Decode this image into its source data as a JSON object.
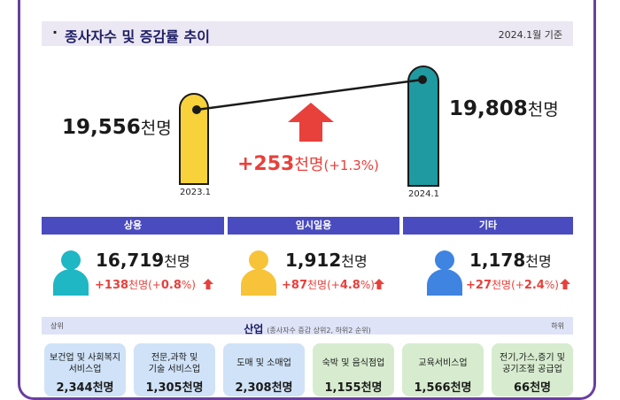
{
  "title": "종사자수 및 증감률 추이",
  "basis": "2024.1월 기준",
  "colors": {
    "accent_red": "#e8403b",
    "header_blue": "#4a4bbf",
    "frame_purple": "#6a3fa0"
  },
  "total": {
    "prev": {
      "year": "2023.1",
      "value": "19,556",
      "unit": "천명"
    },
    "curr": {
      "year": "2024.1",
      "value": "19,808",
      "unit": "천명"
    },
    "change": {
      "value": "+253",
      "unit": "천명",
      "pct": "(+1.3%)"
    }
  },
  "categories": [
    {
      "label": "상용",
      "value": "16,719",
      "unit": "천명",
      "change": "+138",
      "change_unit": "천명",
      "pct_open": "(+",
      "pct": "0.8",
      "pct_close": "%)",
      "icon": "person-teal-icon"
    },
    {
      "label": "임시일용",
      "value": "1,912",
      "unit": "천명",
      "change": "+87",
      "change_unit": "천명",
      "pct_open": "(+",
      "pct": "4.8",
      "pct_close": "%)",
      "icon": "person-yellow-icon"
    },
    {
      "label": "기타",
      "value": "1,178",
      "unit": "천명",
      "change": "+27",
      "change_unit": "천명",
      "pct_open": "(+",
      "pct": "2.4",
      "pct_close": "%)",
      "icon": "person-blue-icon"
    }
  ],
  "industry": {
    "title": "산업",
    "subtitle": "(종사자수 증감 상위2, 하위2 순위)",
    "left_label": "상위",
    "right_label": "하위",
    "cards": [
      {
        "name1": "보건업 및 사회복지",
        "name2": "서비스업",
        "value": "2,344천명"
      },
      {
        "name1": "전문,과학 및",
        "name2": "기술 서비스업",
        "value": "1,305천명"
      },
      {
        "name1": "도매 및 소매업",
        "name2": "",
        "value": "2,308천명"
      },
      {
        "name1": "숙박 및 음식점업",
        "name2": "",
        "value": "1,155천명"
      },
      {
        "name1": "교육서비스업",
        "name2": "",
        "value": "1,566천명"
      },
      {
        "name1": "전기,가스,증기 및",
        "name2": "공기조절 공급업",
        "value": "66천명"
      }
    ]
  }
}
